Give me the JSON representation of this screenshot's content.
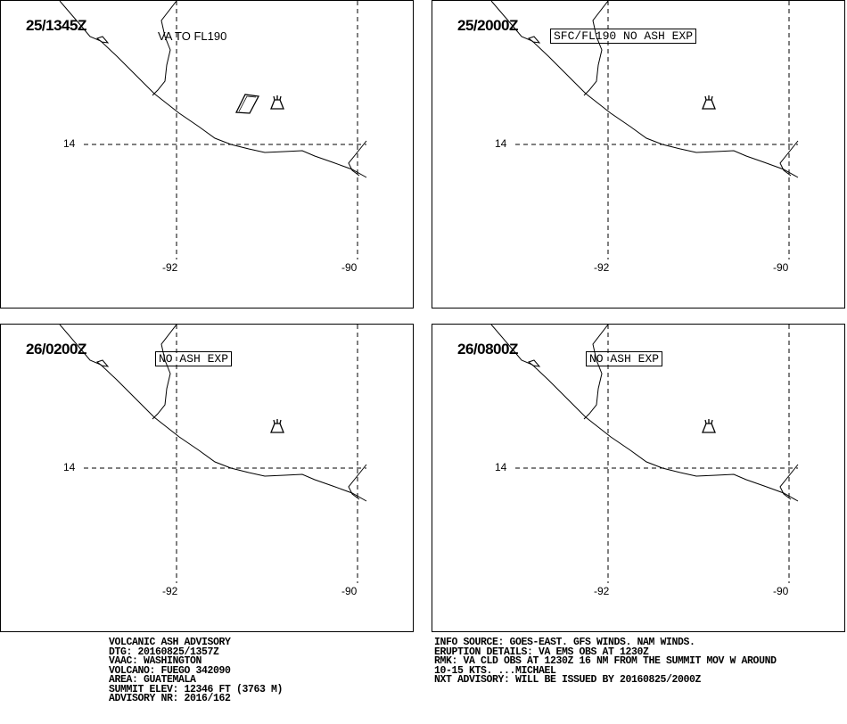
{
  "panels": [
    {
      "time": "25/1345Z",
      "label": "VA TO FL190",
      "label_style": "plain",
      "ash_area": true
    },
    {
      "time": "25/2000Z",
      "label": "SFC/FL190 NO ASH EXP",
      "label_style": "boxed",
      "ash_area": false
    },
    {
      "time": "26/0200Z",
      "label": "NO ASH EXP",
      "label_style": "boxed",
      "ash_area": false
    },
    {
      "time": "26/0800Z",
      "label": "NO ASH EXP",
      "label_style": "boxed",
      "ash_area": false
    }
  ],
  "axes": {
    "lon_left": "-92",
    "lon_right": "-90",
    "lat": "14"
  },
  "icons": {
    "volcano": "volcano-icon",
    "ash_area": "ash-polygon-icon"
  },
  "footer_left": [
    "VOLCANIC ASH ADVISORY",
    "DTG: 20160825/1357Z",
    "VAAC: WASHINGTON",
    "VOLCANO: FUEGO 342090",
    "AREA: GUATEMALA",
    "SUMMIT ELEV: 12346 FT (3763 M)",
    "ADVISORY NR: 2016/162"
  ],
  "footer_right": [
    "INFO SOURCE: GOES-EAST. GFS WINDS. NAM WINDS.",
    "ERUPTION DETAILS: VA EMS OBS AT 1230Z",
    "RMK: VA CLD OBS AT 1230Z 16 NM FROM THE SUMMIT MOV W AROUND",
    "10-15 KTS. ...MICHAEL",
    "NXT ADVISORY: WILL BE ISSUED BY 20160825/2000Z"
  ]
}
